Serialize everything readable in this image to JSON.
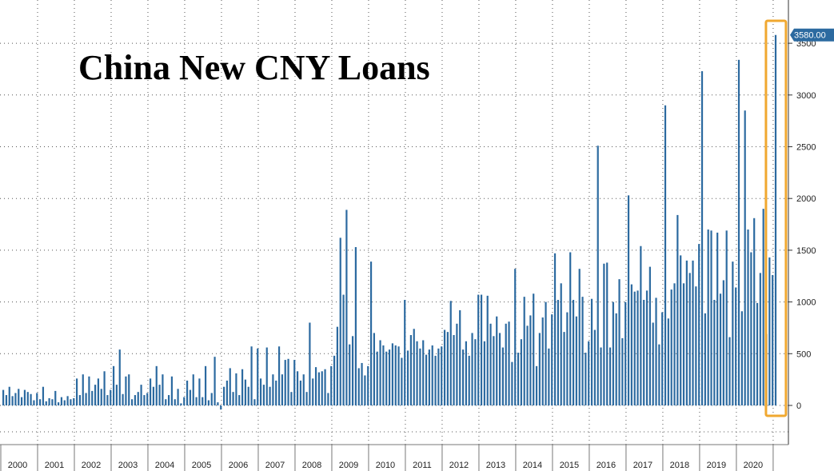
{
  "colors": {
    "bar": "#2c6aa0",
    "highlight_box": "#f0a830",
    "gridline": "#555555",
    "value_badge": "#2c6aa0"
  },
  "chart_data": {
    "type": "bar",
    "title": "China New CNY Loans",
    "xlabel": "",
    "ylabel": "",
    "ylim": [
      -400,
      3800
    ],
    "y_ticks": [
      0,
      500,
      1000,
      1500,
      2000,
      2500,
      3000,
      3500
    ],
    "y_tick_labels": [
      "0",
      "500",
      "1000",
      "1500",
      "2000",
      "2500",
      "3000",
      "3500"
    ],
    "y_axis_side": "right",
    "grid": true,
    "x_tick_labels": [
      "2000",
      "2001",
      "2002",
      "2003",
      "2004",
      "2005",
      "2006",
      "2007",
      "2008",
      "2009",
      "2010",
      "2011",
      "2012",
      "2013",
      "2014",
      "2015",
      "2016",
      "2017",
      "2018",
      "2019",
      "2020"
    ],
    "highlight": "last bar boxed",
    "last_value_label": "3580.00",
    "series": [
      {
        "start": "2000-01",
        "frequency": "monthly",
        "values": [
          150,
          100,
          180,
          90,
          120,
          160,
          80,
          150,
          130,
          110,
          50,
          120,
          60,
          180,
          40,
          70,
          60,
          140,
          30,
          80,
          50,
          90,
          60,
          70,
          260,
          100,
          300,
          120,
          280,
          140,
          200,
          260,
          160,
          330,
          100,
          150,
          380,
          200,
          540,
          110,
          280,
          300,
          60,
          100,
          130,
          200,
          100,
          120,
          260,
          180,
          380,
          200,
          300,
          60,
          100,
          280,
          60,
          160,
          20,
          80,
          240,
          150,
          300,
          80,
          260,
          80,
          380,
          50,
          120,
          470,
          30,
          -40,
          180,
          240,
          360,
          130,
          310,
          100,
          350,
          250,
          180,
          570,
          60,
          550,
          260,
          200,
          560,
          180,
          300,
          240,
          570,
          300,
          440,
          450,
          130,
          440,
          330,
          240,
          300,
          130,
          800,
          260,
          370,
          320,
          330,
          350,
          120,
          380,
          480,
          760,
          1620,
          1070,
          1890,
          590,
          670,
          1530,
          360,
          410,
          290,
          380,
          1390,
          700,
          520,
          630,
          580,
          520,
          540,
          600,
          580,
          570,
          460,
          1020,
          530,
          680,
          740,
          620,
          550,
          630,
          490,
          540,
          580,
          480,
          550,
          570,
          730,
          710,
          1010,
          680,
          790,
          920,
          540,
          620,
          480,
          700,
          640,
          1070,
          1070,
          620,
          1060,
          790,
          670,
          860,
          700,
          560,
          790,
          810,
          420,
          1320,
          510,
          640,
          1050,
          770,
          870,
          1080,
          380,
          700,
          850,
          1000,
          550,
          880,
          1470,
          1020,
          1180,
          710,
          900,
          1480,
          1020,
          860,
          1320,
          1050,
          510,
          620,
          1030,
          730,
          2510,
          560,
          1370,
          1380,
          560,
          1000,
          890,
          1220,
          650,
          1000,
          2030,
          1170,
          1100,
          1110,
          1540,
          1020,
          1110,
          1340,
          800,
          1040,
          590,
          900,
          2900,
          840,
          1120,
          1180,
          1840,
          1450,
          1180,
          1400,
          1280,
          1400,
          1150,
          1560,
          3230,
          890,
          1700,
          1690,
          1020,
          1670,
          1080,
          1210,
          1690,
          660,
          1390,
          1140,
          3340,
          910,
          2850,
          1700,
          1480,
          1810,
          990,
          1280,
          1900,
          690,
          1430,
          1260,
          3580
        ]
      }
    ]
  }
}
